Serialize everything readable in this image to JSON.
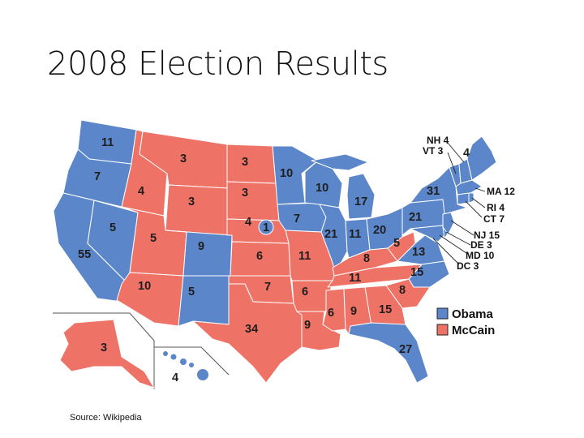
{
  "slide": {
    "title": "2008 Election Results",
    "source": "Source: Wikipedia"
  },
  "colors": {
    "obama": "#5b86c9",
    "mccain": "#ee7265",
    "border": "#ffffff"
  },
  "legend": {
    "items": [
      {
        "label": "Obama",
        "color": "#5b86c9"
      },
      {
        "label": "McCain",
        "color": "#ee7265"
      }
    ]
  },
  "map_labels": {
    "WA": "11",
    "OR": "7",
    "CA": "55",
    "NV": "5",
    "ID": "4",
    "MT": "3",
    "WY": "3",
    "UT": "5",
    "AZ": "10",
    "CO": "9",
    "NM": "5",
    "ND": "3",
    "SD": "3",
    "NE": "4",
    "NE2": "1",
    "KS": "6",
    "OK": "7",
    "TX": "34",
    "MN": "10",
    "IA": "7",
    "MO": "11",
    "AR": "6",
    "LA": "9",
    "WI": "10",
    "IL": "21",
    "MI": "17",
    "IN": "11",
    "OH": "20",
    "KY": "8",
    "TN": "11",
    "MS": "6",
    "AL": "9",
    "GA": "15",
    "SC": "8",
    "NC": "15",
    "VA": "13",
    "WV": "5",
    "PA": "21",
    "NY": "31",
    "FL": "27",
    "ME": "4",
    "AK": "3",
    "HI": "4"
  },
  "callouts": {
    "nh": "NH 4",
    "vt": "VT 3",
    "ma": "MA 12",
    "ri": "RI 4",
    "ct": "CT 7",
    "nj": "NJ 15",
    "de": "DE 3",
    "md": "MD 10",
    "dc": "DC 3"
  }
}
